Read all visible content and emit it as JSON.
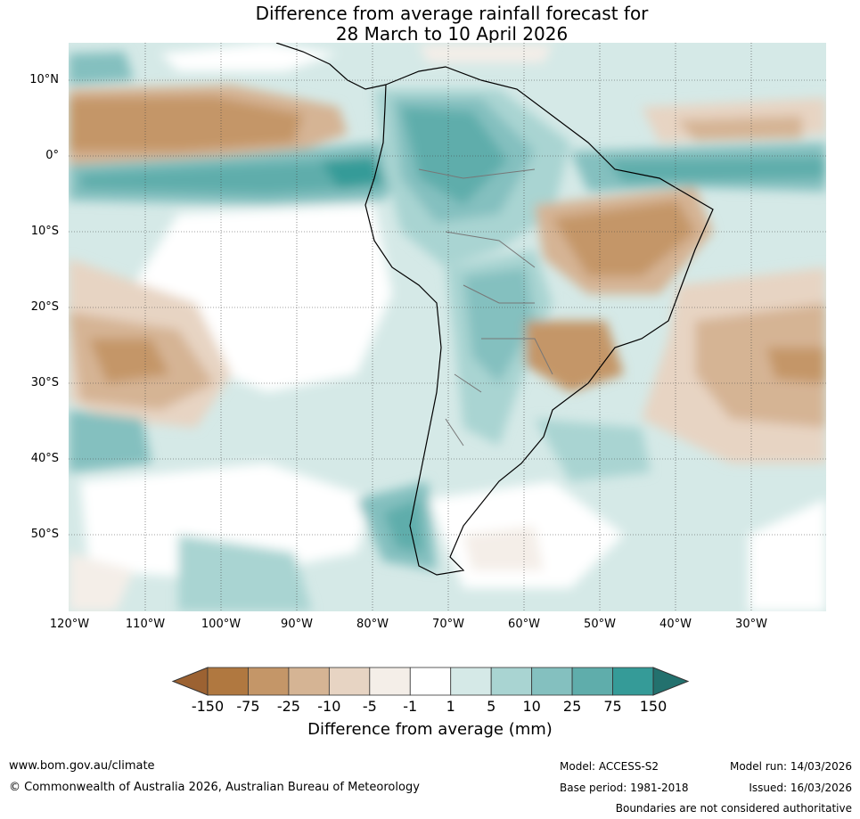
{
  "title": {
    "line1": "Difference from average rainfall forecast for",
    "line2": "28 March to 10 April 2026"
  },
  "map": {
    "lat_labels": [
      "10°N",
      "0°",
      "10°S",
      "20°S",
      "30°S",
      "40°S",
      "50°S"
    ],
    "lon_labels": [
      "120°W",
      "110°W",
      "100°W",
      "90°W",
      "80°W",
      "70°W",
      "60°W",
      "50°W",
      "40°W",
      "30°W"
    ]
  },
  "colorbar": {
    "ticks": [
      "-150",
      "-75",
      "-25",
      "-10",
      "-5",
      "-1",
      "1",
      "5",
      "10",
      "25",
      "75",
      "150"
    ],
    "colors": [
      "#9c6232",
      "#b07840",
      "#c49668",
      "#d5b494",
      "#e7d4c3",
      "#f4eee8",
      "#ffffff",
      "#d5e9e7",
      "#a9d4d2",
      "#84c0bf",
      "#5fadab",
      "#359b98",
      "#23716e"
    ],
    "label": "Difference from average (mm)"
  },
  "footer": {
    "url": "www.bom.gov.au/climate",
    "copyright": "© Commonwealth of Australia 2026, Australian Bureau of Meteorology",
    "model": "Model: ACCESS-S2",
    "base_period": "Base period: 1981-2018",
    "model_run": "Model run: 14/03/2026",
    "issued": "Issued: 16/03/2026",
    "disclaimer": "Boundaries are not considered authoritative"
  }
}
